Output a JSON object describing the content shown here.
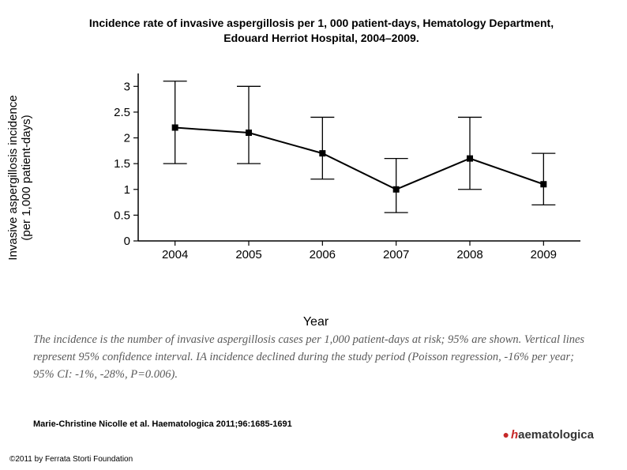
{
  "title_line1": "Incidence rate of invasive aspergillosis per 1, 000 patient-days, Hematology Department,",
  "title_line2": "Edouard Herriot Hospital, 2004–2009.",
  "chart": {
    "type": "errorbar-line",
    "ylabel_line1": "Invasive aspergillosis incidence",
    "ylabel_line2": "(per 1,000 patient-days)",
    "xlabel": "Year",
    "categories": [
      "2004",
      "2005",
      "2006",
      "2007",
      "2008",
      "2009"
    ],
    "values": [
      2.2,
      2.1,
      1.7,
      1.0,
      1.6,
      1.1
    ],
    "err_low": [
      1.5,
      1.5,
      1.2,
      0.55,
      1.0,
      0.7
    ],
    "err_high": [
      3.1,
      3.0,
      2.4,
      1.6,
      2.4,
      1.7
    ],
    "ylim": [
      0,
      3.25
    ],
    "yticks": [
      0,
      0.5,
      1,
      1.5,
      2,
      2.5,
      3
    ],
    "ytick_labels": [
      "0",
      "0.5",
      "1",
      "1.5",
      "2",
      "2.5",
      "3"
    ],
    "axis_color": "#000000",
    "line_color": "#000000",
    "marker_color": "#000000",
    "marker_size": 8,
    "line_width": 2,
    "cap_width": 30,
    "background_color": "#ffffff",
    "tick_fontsize": 15,
    "label_fontsize": 15
  },
  "caption": "The incidence is the number of invasive aspergillosis cases per 1,000 patient-days at risk; 95% are shown. Vertical lines represent 95% confidence interval. IA incidence declined during the study period (Poisson regression, -16% per year; 95% CI: -1%, -28%, P=0.006).",
  "citation": "Marie-Christine Nicolle et al. Haematologica 2011;96:1685-1691",
  "logo_text_h": "h",
  "logo_text_rest": "aematologica",
  "copyright": "©2011 by Ferrata Storti Foundation"
}
